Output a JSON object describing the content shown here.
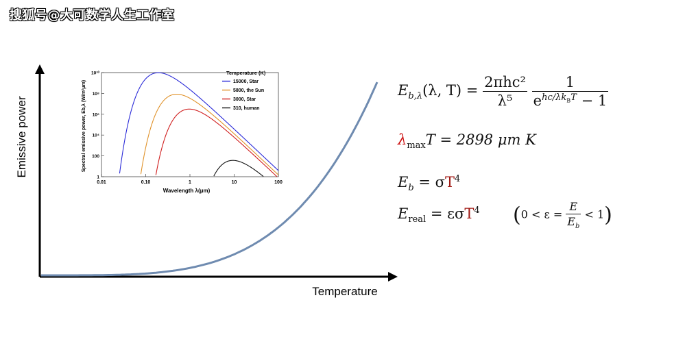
{
  "watermark": "搜狐号@大可数学人生工作室",
  "main_chart": {
    "type": "line",
    "xlabel": "Temperature",
    "ylabel": "Emissive power",
    "curve_color": "#6f8bb0",
    "curve": "y ∝ T^4"
  },
  "chart_data": {
    "type": "line",
    "xlabel": "Wavelength λ(μm)",
    "ylabel": "Spectral emissive power, Eb,λ (W/m²μm)",
    "x_scale": "log",
    "y_scale": "log",
    "xlim": [
      0.01,
      100
    ],
    "ylim": [
      1,
      10000000000
    ],
    "x_ticks": [
      "0.01",
      "0.10",
      "1",
      "10",
      "100"
    ],
    "y_ticks": [
      "1",
      "100",
      "10⁴",
      "10⁶",
      "10⁸",
      "10¹⁰"
    ],
    "legend_title": "Temperature (K)",
    "legend_position": "top-right",
    "series": [
      {
        "name": "15000, Star",
        "T": 15000,
        "color": "#2a2ad8"
      },
      {
        "name": "5800, the Sun",
        "T": 5800,
        "color": "#e0922a"
      },
      {
        "name": "3000, Star",
        "T": 3000,
        "color": "#d01e1e"
      },
      {
        "name": "310, human",
        "T": 310,
        "color": "#111111"
      }
    ]
  },
  "equations": {
    "planck": {
      "lhs": "E",
      "lhs_sub": "b,λ",
      "args": "(λ, T) =",
      "num1": "2πhc²",
      "den1": "λ⁵",
      "num2": "1",
      "den2_base": "e",
      "den2_exp": "hc/λk",
      "den2_exp_sub": "B",
      "den2_exp_tail": "T",
      "den2_tail": " − 1"
    },
    "wien": {
      "lambda": "λ",
      "sub": "max",
      "rest": "T = 2898 μm K"
    },
    "stefan": {
      "lhs": "E",
      "lhs_sub": "b",
      "eq": " = σ",
      "T": "T",
      "exp": "4"
    },
    "real": {
      "lhs": "E",
      "lhs_sub": "real",
      "eq": " = εσ",
      "T": "T",
      "exp": "4",
      "cond_left": "0 < ε =",
      "cond_num": "E",
      "cond_den": "E",
      "cond_den_sub": "b",
      "cond_right": "< 1"
    }
  }
}
